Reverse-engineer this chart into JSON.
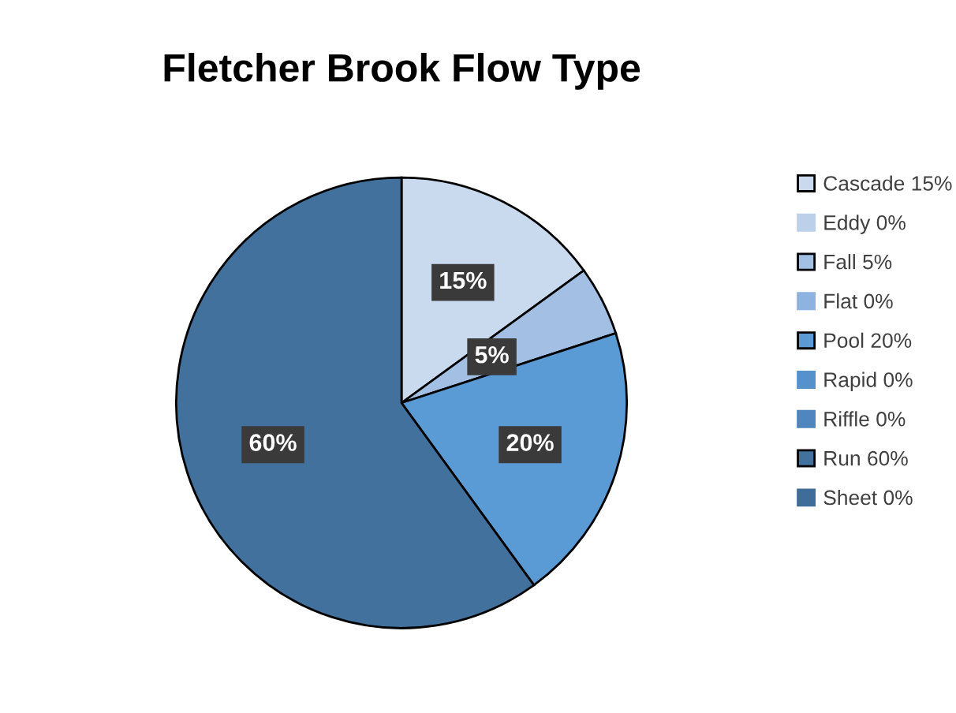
{
  "chart_data": {
    "type": "pie",
    "title": "Fletcher Brook Flow Type",
    "categories": [
      "Cascade 15%",
      "Eddy 0%",
      "Fall 5%",
      "Flat 0%",
      "Pool 20%",
      "Rapid 0%",
      "Riffle 0%",
      "Run 60%",
      "Sheet 0%"
    ],
    "values": [
      15,
      0,
      5,
      0,
      20,
      0,
      0,
      60,
      0
    ],
    "colors": [
      "#c9d9ee",
      "#bcd0ea",
      "#a3bfe3",
      "#8fb3e0",
      "#5b9bd5",
      "#5592cc",
      "#4f86bf",
      "#41719c",
      "#3f6d9a"
    ],
    "value_labels": [
      "15%",
      null,
      "5%",
      null,
      "20%",
      null,
      null,
      "60%",
      null
    ],
    "legend": "right"
  }
}
